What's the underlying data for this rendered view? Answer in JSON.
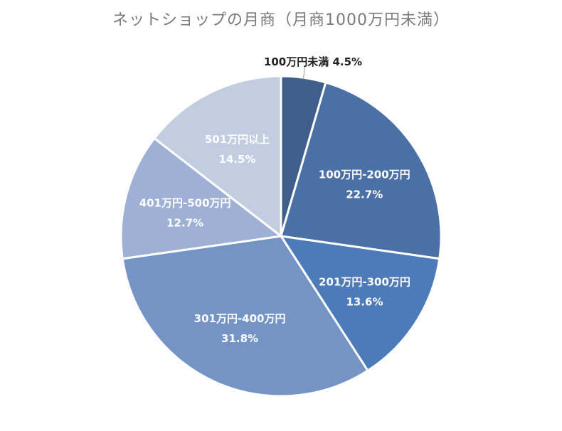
{
  "chart_data": {
    "type": "pie",
    "title": "ネットショップの月商（月商1000万円未満）",
    "categories": [
      "100万円未満",
      "100万円-200万円",
      "201万円-300万円",
      "301万円-400万円",
      "401万円-500万円",
      "501万円以上"
    ],
    "values": [
      4.5,
      22.7,
      13.6,
      31.8,
      12.7,
      14.5
    ],
    "value_labels": [
      "4.5%",
      "22.7%",
      "13.6%",
      "31.8%",
      "12.7%",
      "14.5%"
    ],
    "colors": [
      "#3f5e8c",
      "#4a70a6",
      "#4d7ab8",
      "#7494c6",
      "#9eb0d4",
      "#c3cde2"
    ],
    "legend": "none",
    "label_color_inside": "#ffffff",
    "label_color_outside": "#222222"
  }
}
